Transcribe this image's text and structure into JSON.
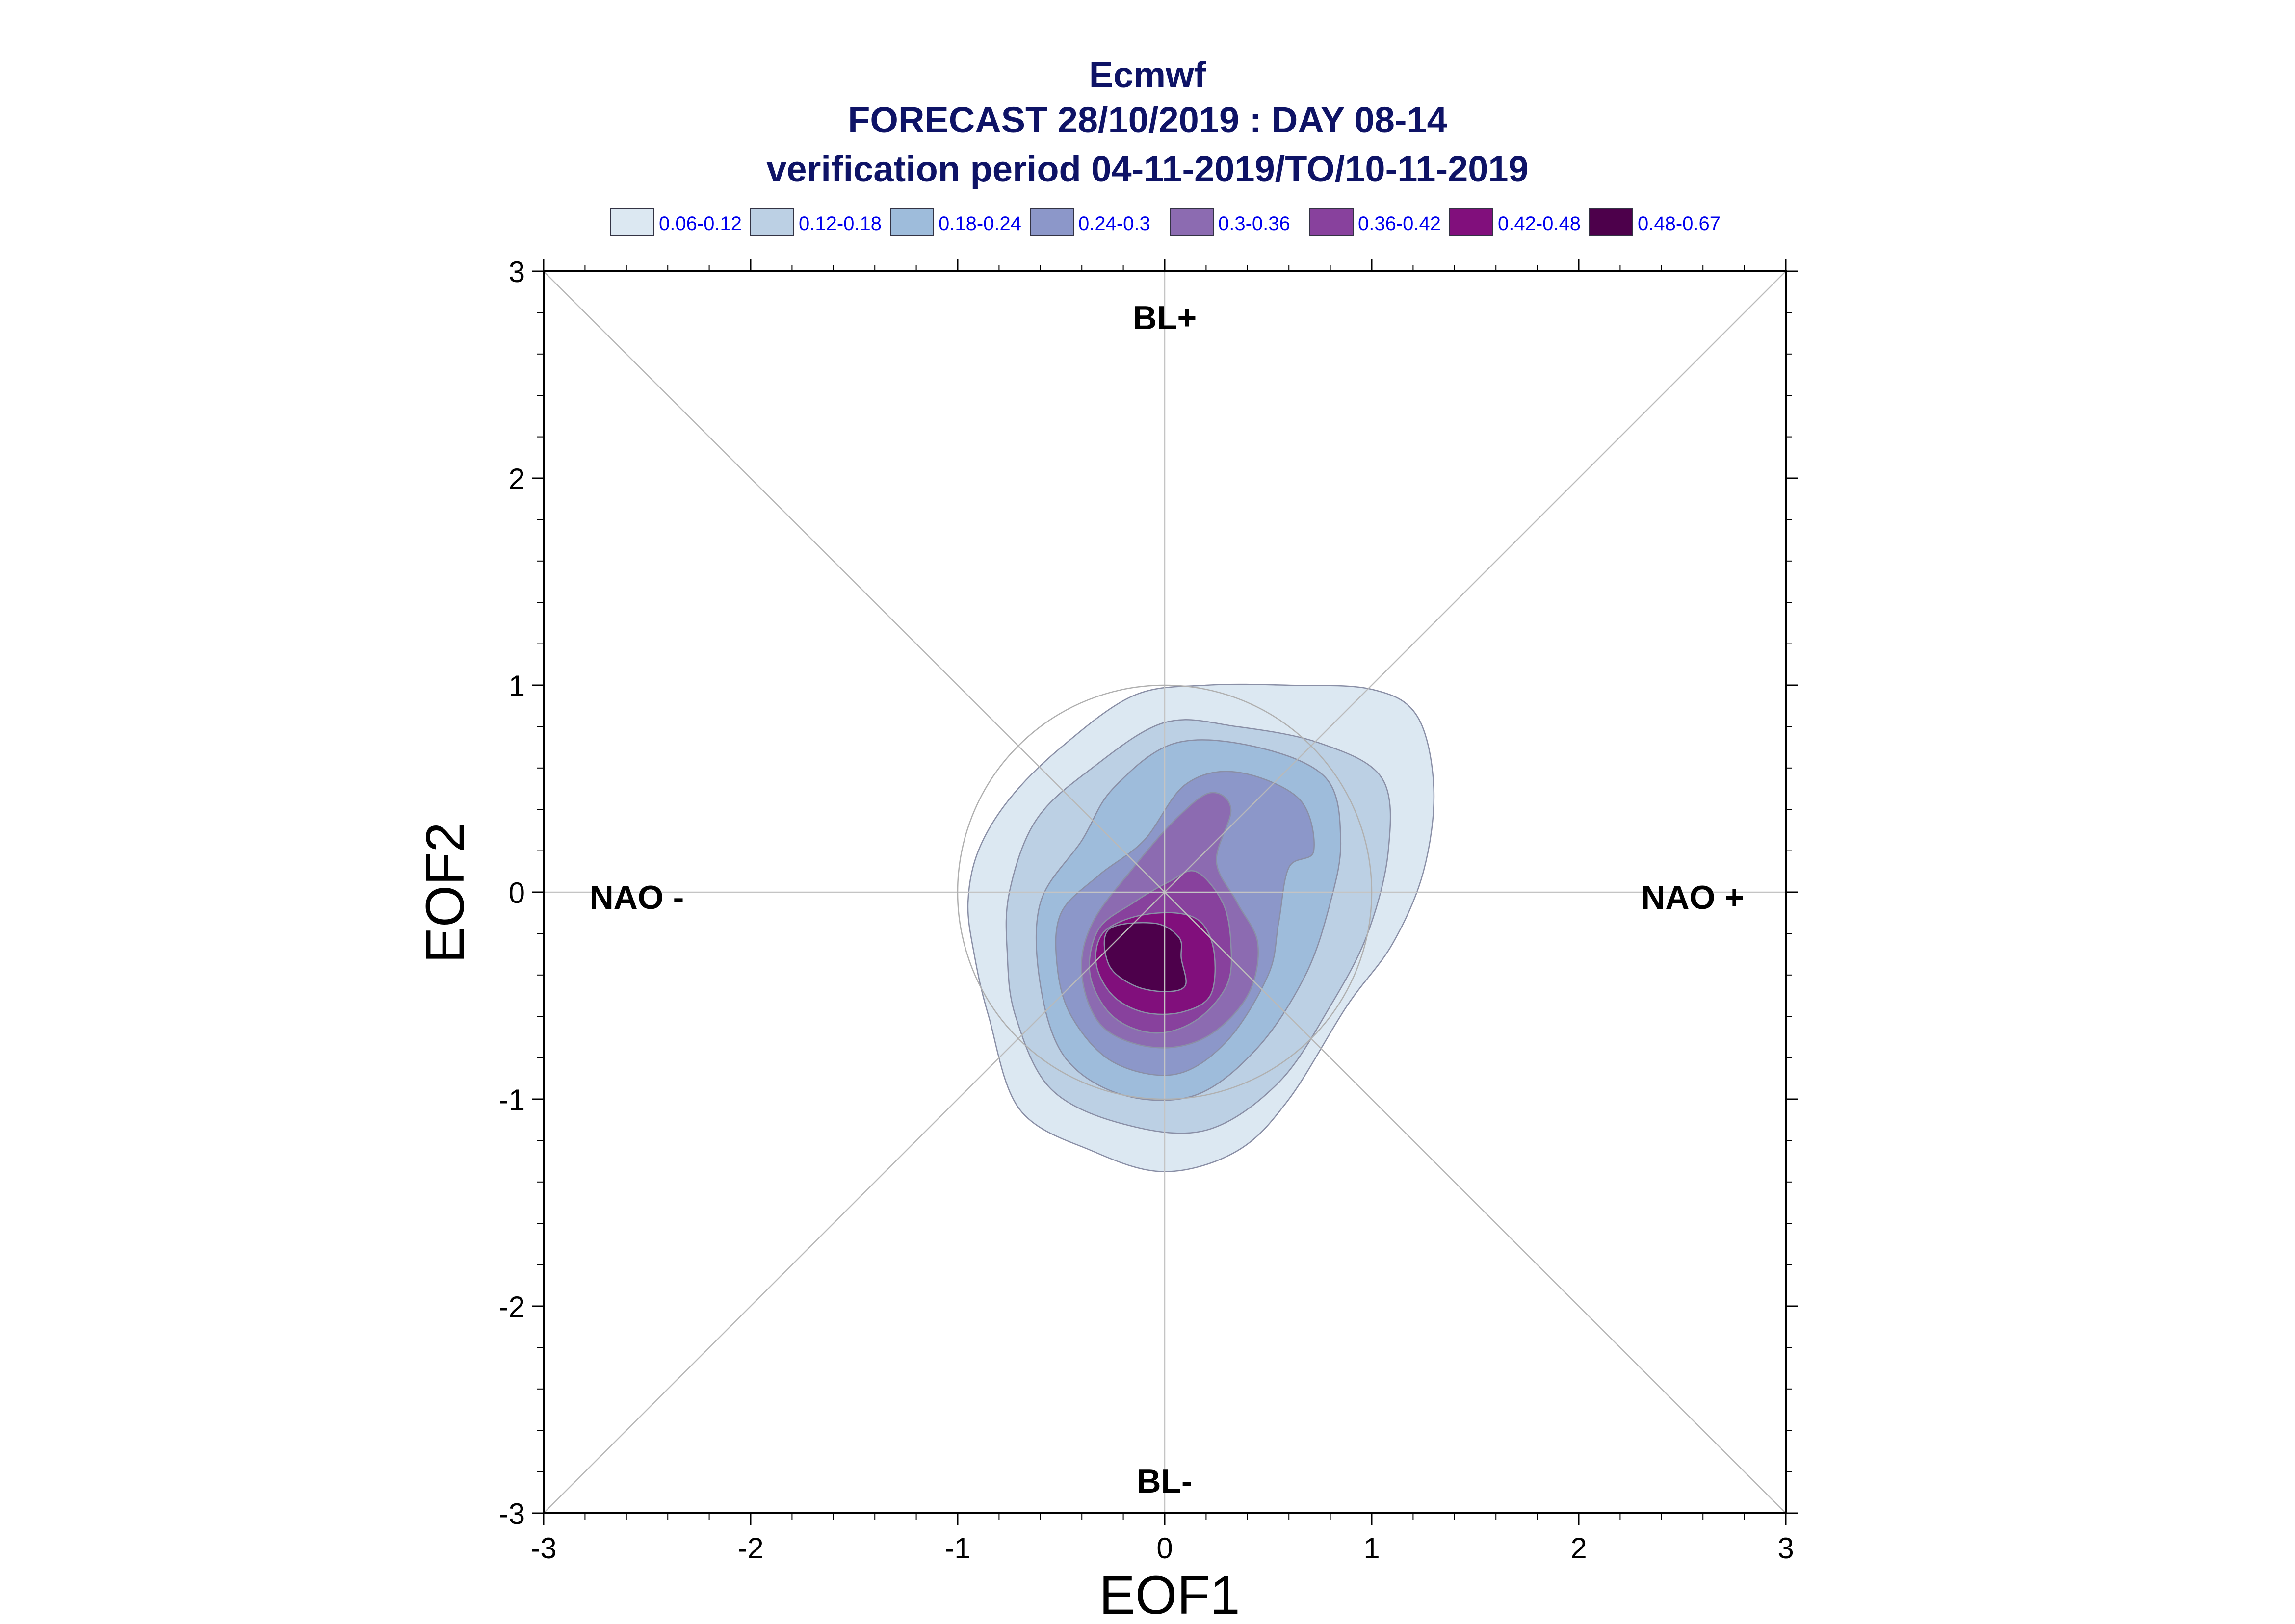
{
  "chart_data": {
    "type": "contour",
    "title": [
      "Ecmwf",
      "FORECAST 28/10/2019 : DAY 08-14",
      "verification period 04-11-2019/TO/10-11-2019"
    ],
    "xlabel": "EOF1",
    "ylabel": "EOF2",
    "xlim": [
      -3,
      3
    ],
    "ylim": [
      -3,
      3
    ],
    "xticks": [
      -3,
      -2,
      -1,
      0,
      1,
      2,
      3
    ],
    "yticks": [
      -3,
      -2,
      -1,
      0,
      1,
      2,
      3
    ],
    "legend": [
      {
        "label": "0.06-0.12",
        "color": "#dce8f2"
      },
      {
        "label": "0.12-0.18",
        "color": "#bcd0e4"
      },
      {
        "label": "0.18-0.24",
        "color": "#9ebcdb"
      },
      {
        "label": "0.24-0.3",
        "color": "#8c97c9"
      },
      {
        "label": "0.3-0.36",
        "color": "#8c6bb1"
      },
      {
        "label": "0.36-0.42",
        "color": "#88419d"
      },
      {
        "label": "0.42-0.48",
        "color": "#810f7c"
      },
      {
        "label": "0.48-0.67",
        "color": "#4d004b"
      }
    ],
    "regime_labels": [
      {
        "text": "BL+",
        "x": 0,
        "y": 2.72
      },
      {
        "text": "BL-",
        "x": 0,
        "y": -2.9
      },
      {
        "text": "NAO -",
        "x": -2.55,
        "y": -0.08
      },
      {
        "text": "NAO +",
        "x": 2.55,
        "y": -0.08
      }
    ],
    "reference_circle": {
      "cx": 0,
      "cy": 0,
      "r": 1
    },
    "contours": [
      {
        "level": "0.06-0.12",
        "points": [
          [
            -0.95,
            -0.05
          ],
          [
            -0.9,
            0.2
          ],
          [
            -0.75,
            0.45
          ],
          [
            -0.5,
            0.7
          ],
          [
            -0.15,
            0.95
          ],
          [
            0.2,
            1.0
          ],
          [
            0.6,
            1.0
          ],
          [
            1.0,
            0.98
          ],
          [
            1.22,
            0.85
          ],
          [
            1.3,
            0.5
          ],
          [
            1.25,
            0.1
          ],
          [
            1.1,
            -0.25
          ],
          [
            0.88,
            -0.55
          ],
          [
            0.6,
            -1.0
          ],
          [
            0.35,
            -1.25
          ],
          [
            0.0,
            -1.35
          ],
          [
            -0.35,
            -1.25
          ],
          [
            -0.7,
            -1.05
          ],
          [
            -0.85,
            -0.6
          ],
          [
            -0.92,
            -0.3
          ]
        ]
      },
      {
        "level": "0.12-0.18",
        "points": [
          [
            -0.75,
            0.0
          ],
          [
            -0.62,
            0.35
          ],
          [
            -0.35,
            0.6
          ],
          [
            0.0,
            0.82
          ],
          [
            0.35,
            0.8
          ],
          [
            0.75,
            0.72
          ],
          [
            1.05,
            0.55
          ],
          [
            1.08,
            0.2
          ],
          [
            0.98,
            -0.2
          ],
          [
            0.8,
            -0.55
          ],
          [
            0.55,
            -0.92
          ],
          [
            0.2,
            -1.15
          ],
          [
            -0.2,
            -1.12
          ],
          [
            -0.55,
            -0.95
          ],
          [
            -0.72,
            -0.6
          ],
          [
            -0.76,
            -0.3
          ]
        ]
      },
      {
        "level": "0.18-0.24",
        "points": [
          [
            -0.6,
            -0.05
          ],
          [
            -0.4,
            0.25
          ],
          [
            -0.25,
            0.5
          ],
          [
            0.05,
            0.72
          ],
          [
            0.45,
            0.7
          ],
          [
            0.78,
            0.55
          ],
          [
            0.85,
            0.25
          ],
          [
            0.8,
            -0.05
          ],
          [
            0.68,
            -0.4
          ],
          [
            0.45,
            -0.75
          ],
          [
            0.15,
            -0.98
          ],
          [
            -0.2,
            -0.98
          ],
          [
            -0.48,
            -0.8
          ],
          [
            -0.6,
            -0.45
          ]
        ]
      },
      {
        "level": "0.24-0.3",
        "points": [
          [
            -0.5,
            -0.1
          ],
          [
            -0.32,
            0.08
          ],
          [
            -0.1,
            0.25
          ],
          [
            0.1,
            0.52
          ],
          [
            0.35,
            0.58
          ],
          [
            0.65,
            0.45
          ],
          [
            0.72,
            0.2
          ],
          [
            0.6,
            0.12
          ],
          [
            0.55,
            -0.15
          ],
          [
            0.5,
            -0.4
          ],
          [
            0.3,
            -0.72
          ],
          [
            0.05,
            -0.88
          ],
          [
            -0.25,
            -0.82
          ],
          [
            -0.45,
            -0.6
          ],
          [
            -0.52,
            -0.35
          ]
        ]
      },
      {
        "level": "0.3-0.36",
        "points": [
          [
            -0.35,
            -0.15
          ],
          [
            -0.15,
            0.12
          ],
          [
            0.05,
            0.35
          ],
          [
            0.22,
            0.48
          ],
          [
            0.32,
            0.4
          ],
          [
            0.25,
            0.15
          ],
          [
            0.35,
            -0.05
          ],
          [
            0.45,
            -0.25
          ],
          [
            0.4,
            -0.5
          ],
          [
            0.2,
            -0.7
          ],
          [
            -0.05,
            -0.75
          ],
          [
            -0.3,
            -0.65
          ],
          [
            -0.4,
            -0.4
          ]
        ]
      },
      {
        "level": "0.36-0.42",
        "points": [
          [
            -0.32,
            -0.18
          ],
          [
            -0.15,
            -0.05
          ],
          [
            0.02,
            0.05
          ],
          [
            0.15,
            0.1
          ],
          [
            0.28,
            -0.05
          ],
          [
            0.32,
            -0.25
          ],
          [
            0.3,
            -0.45
          ],
          [
            0.15,
            -0.62
          ],
          [
            -0.05,
            -0.68
          ],
          [
            -0.25,
            -0.6
          ],
          [
            -0.36,
            -0.4
          ]
        ]
      },
      {
        "level": "0.42-0.48",
        "points": [
          [
            -0.3,
            -0.2
          ],
          [
            -0.15,
            -0.12
          ],
          [
            0.05,
            -0.1
          ],
          [
            0.18,
            -0.15
          ],
          [
            0.24,
            -0.3
          ],
          [
            0.22,
            -0.5
          ],
          [
            0.08,
            -0.58
          ],
          [
            -0.1,
            -0.58
          ],
          [
            -0.25,
            -0.5
          ],
          [
            -0.33,
            -0.35
          ]
        ]
      },
      {
        "level": "0.48-0.67",
        "points": [
          [
            -0.27,
            -0.18
          ],
          [
            -0.05,
            -0.15
          ],
          [
            0.07,
            -0.22
          ],
          [
            0.08,
            -0.32
          ],
          [
            0.1,
            -0.45
          ],
          [
            0.0,
            -0.48
          ],
          [
            -0.15,
            -0.45
          ],
          [
            -0.27,
            -0.35
          ]
        ]
      }
    ]
  }
}
